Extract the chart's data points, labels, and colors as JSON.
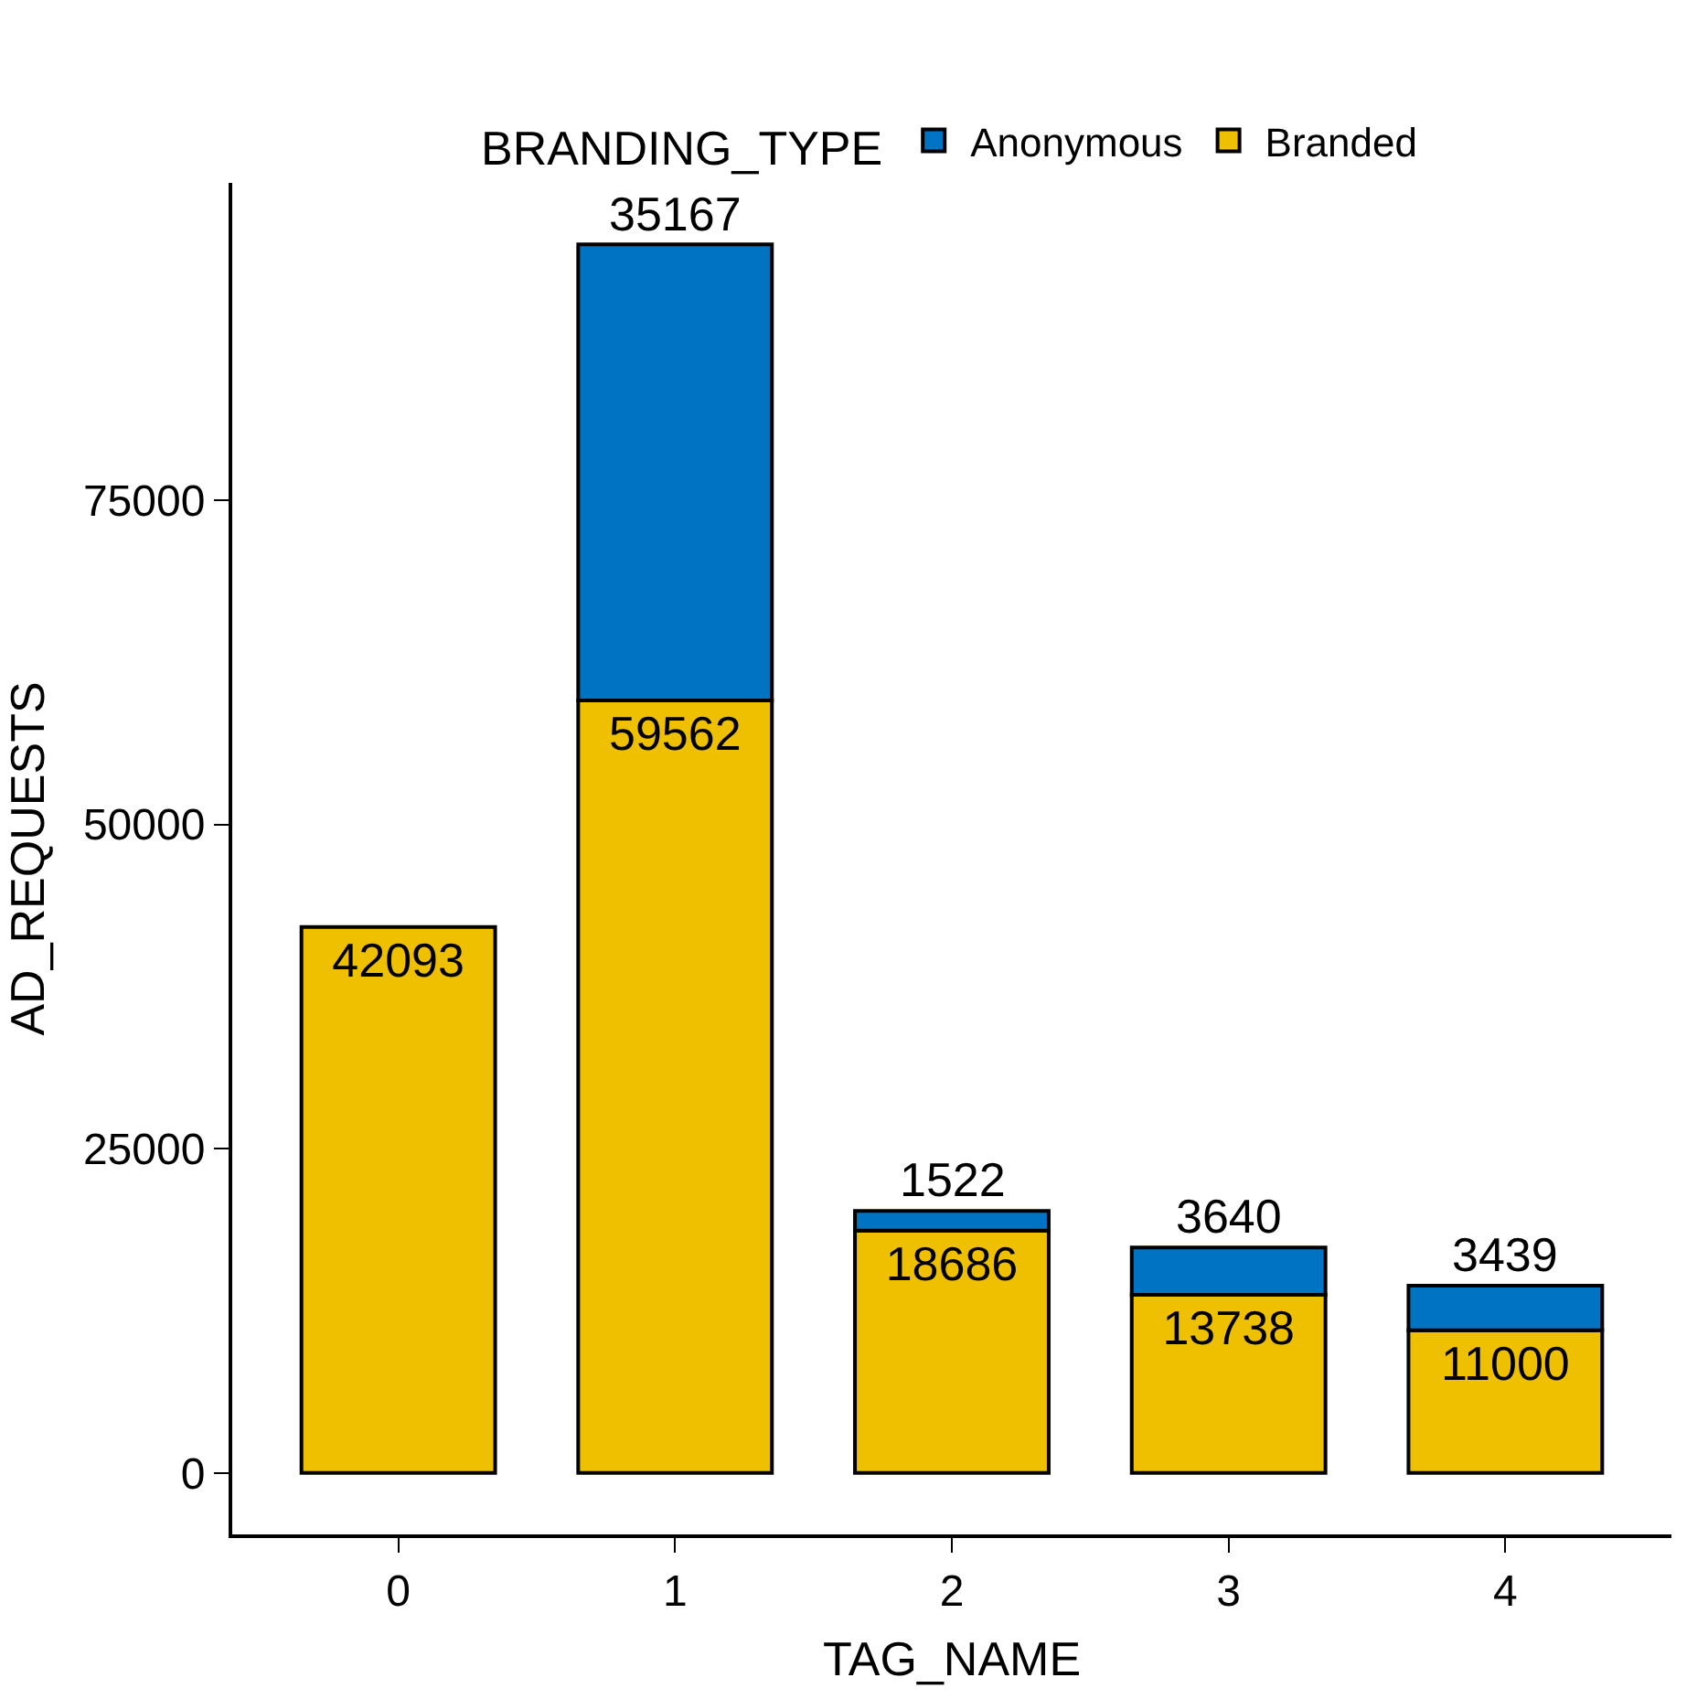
{
  "chart_data": {
    "type": "bar",
    "stacked": true,
    "xlabel": "TAG_NAME",
    "ylabel": "AD_REQUESTS",
    "legend_title": "BRANDING_TYPE",
    "categories": [
      "0",
      "1",
      "2",
      "3",
      "4"
    ],
    "series": [
      {
        "name": "Branded",
        "color": "#efc000",
        "values": [
          42093,
          59562,
          18686,
          13738,
          11000
        ]
      },
      {
        "name": "Anonymous",
        "color": "#0073c2",
        "values": [
          null,
          35167,
          1522,
          3640,
          3439
        ]
      }
    ],
    "ylim": [
      -4736,
      99465
    ],
    "yticks": [
      0,
      25000,
      50000,
      75000
    ],
    "legend": "top",
    "data_labels": true
  }
}
